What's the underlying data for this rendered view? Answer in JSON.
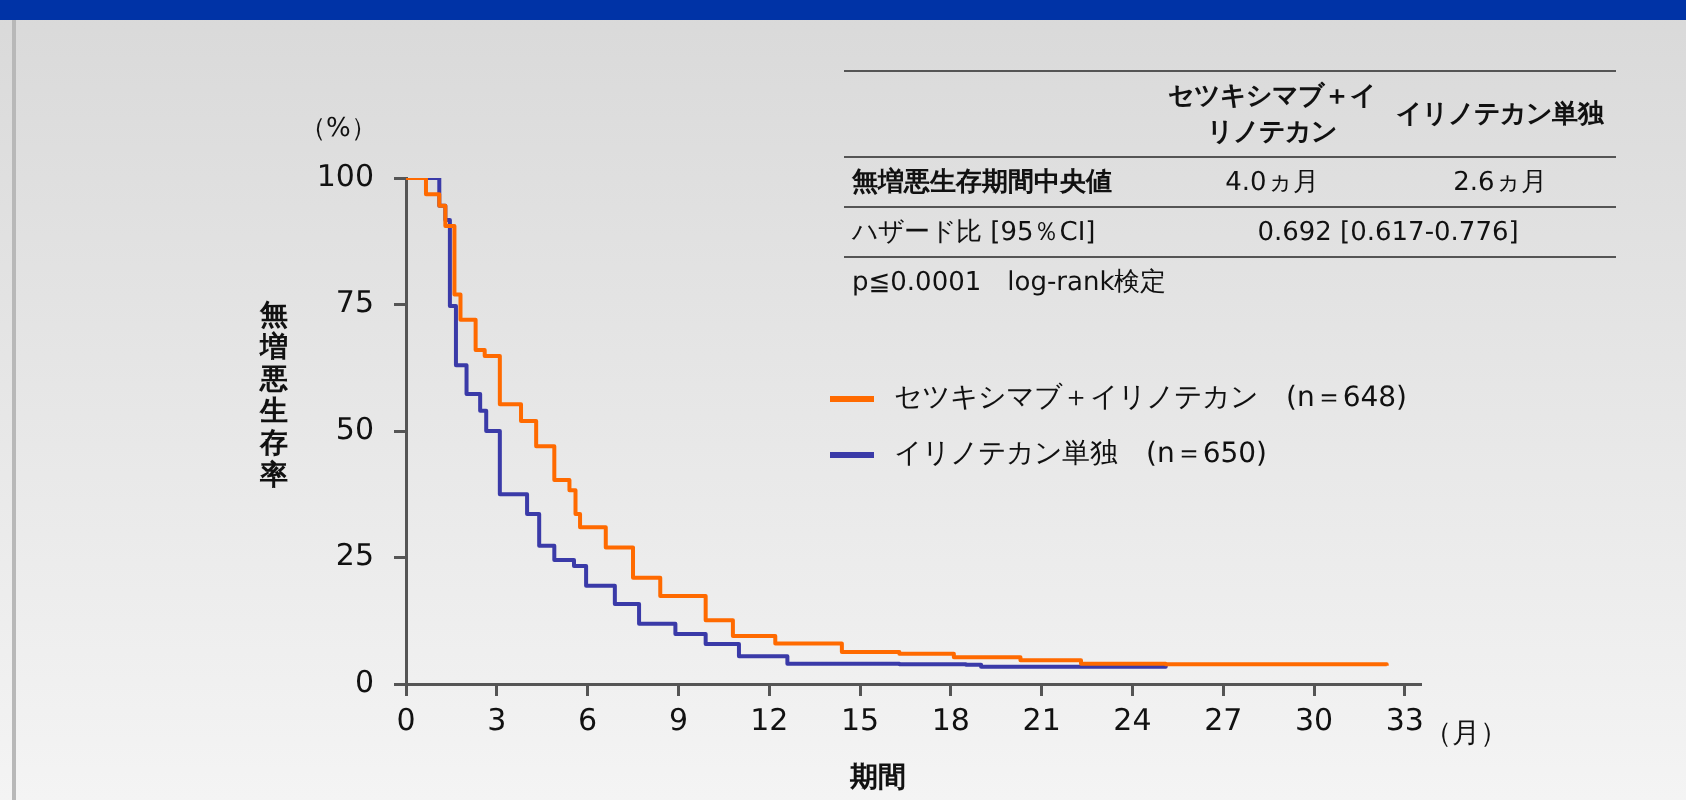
{
  "chart_data": {
    "type": "step",
    "xlabel": "期間",
    "ylabel": "無増悪生存率",
    "xlim": [
      0,
      33.5
    ],
    "xticks": [
      0,
      3,
      6,
      9,
      12,
      15,
      18,
      21,
      24,
      27,
      30,
      33
    ],
    "ylim": [
      0,
      100
    ],
    "yticks": [
      0,
      25,
      50,
      75,
      100
    ],
    "grid": false,
    "legend": "right",
    "marker": "none",
    "line_style": "solid",
    "annotations": [
      "（%）",
      "（月）",
      "セツキシマブ＋イリノテカン",
      "イリノテカン単独",
      "無増悪生存期間中央値",
      "4.0ヵ月",
      "2.6ヵ月",
      "ハザード比 [95％CI]",
      "0.692 [0.617-0.776]",
      "p≦0.0001　log-rank検定"
    ],
    "series": [
      {
        "name": "セツキシマブ＋イリノテカン　(n＝648)",
        "color": "#ff6a00",
        "x": [
          0,
          0.66,
          1.1,
          1.3,
          1.6,
          1.8,
          2.3,
          2.6,
          3.1,
          3.8,
          4.3,
          4.9,
          5.4,
          5.6,
          5.75,
          6.6,
          7.5,
          8.4,
          9.9,
          10.8,
          12.2,
          14.4,
          16.3,
          18.1,
          20.3,
          22.3,
          25.1,
          32.4
        ],
        "values": [
          100,
          96.8,
          94.5,
          90.5,
          77,
          72,
          66,
          64.8,
          55.3,
          52,
          47,
          40.3,
          38.3,
          33.6,
          31,
          27,
          21,
          17.4,
          12.6,
          9.5,
          8,
          6.3,
          6,
          5.3,
          4.7,
          4,
          3.9,
          3.6
        ]
      },
      {
        "name": "イリノテカン単独　(n＝650)",
        "color": "#3a3aa8",
        "x": [
          0,
          1.1,
          1.3,
          1.45,
          1.65,
          2.0,
          2.45,
          2.65,
          3.1,
          4.0,
          4.4,
          4.9,
          5.55,
          5.95,
          6.9,
          7.7,
          8.9,
          9.9,
          11,
          12.6,
          16.3,
          18.5,
          19,
          25.1
        ],
        "values": [
          100,
          94.5,
          91.7,
          74.7,
          63,
          57.3,
          54,
          50,
          37.5,
          33.6,
          27.3,
          24.5,
          23.3,
          19.4,
          15.8,
          11.9,
          9.9,
          7.9,
          5.5,
          4,
          3.9,
          3.8,
          3.4,
          3.6
        ]
      }
    ]
  }
}
